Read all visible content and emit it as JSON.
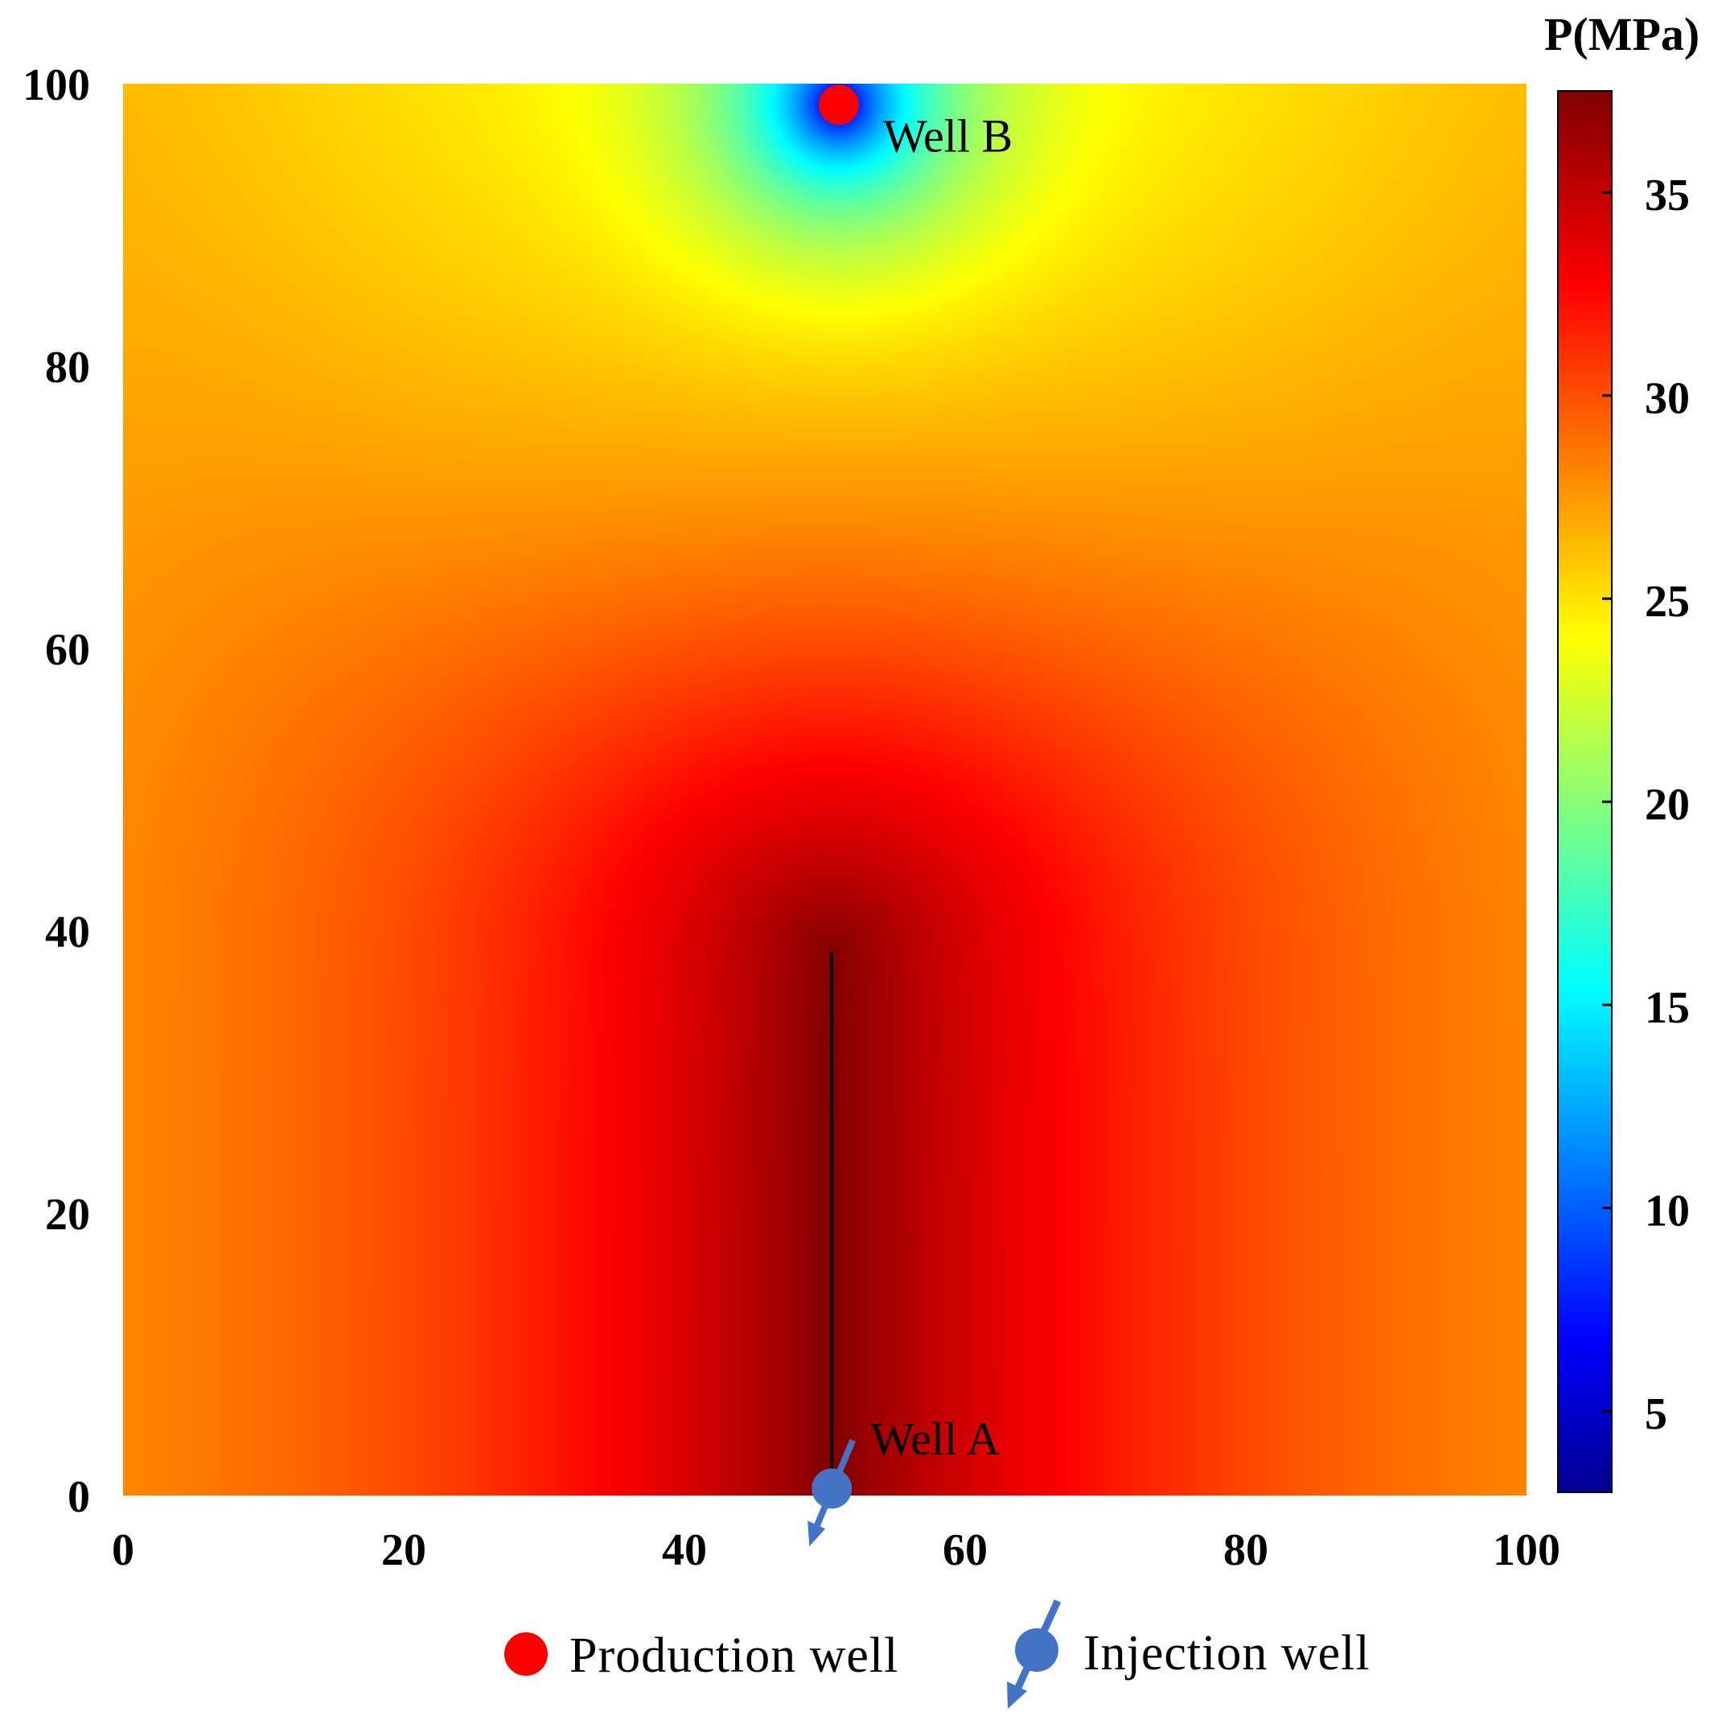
{
  "chart_data": {
    "type": "heatmap",
    "title": "",
    "xlabel": "",
    "ylabel": "",
    "xlim": [
      0,
      100
    ],
    "ylim": [
      0,
      100
    ],
    "x_ticks": [
      0,
      20,
      40,
      60,
      80,
      100
    ],
    "y_ticks": [
      0,
      20,
      40,
      60,
      80,
      100
    ],
    "grid": false,
    "field": {
      "quantity": "pressure",
      "min": 3,
      "max": 37.5,
      "background": 26,
      "injection_boost": 11.5,
      "production_drawdown": 24
    },
    "colorbar": {
      "title": "P(MPa)",
      "range": [
        3,
        37.5
      ],
      "ticks": [
        5,
        10,
        15,
        20,
        25,
        30,
        35
      ],
      "colormap": "jet",
      "colormap_stops": [
        "#00008f",
        "#0000ff",
        "#00ffff",
        "#ffff00",
        "#ff0000",
        "#800000"
      ]
    },
    "fracture": {
      "x": 50.5,
      "y_start": 0,
      "y_end": 38.5,
      "color": "#000000"
    },
    "wells": [
      {
        "name": "Well B",
        "type": "production",
        "x": 51,
        "y": 98.5,
        "color": "#ff0000"
      },
      {
        "name": "Well A",
        "type": "injection",
        "x": 50.5,
        "y": 0.5,
        "color": "#4472c4"
      }
    ],
    "legend": {
      "placement": "bottom",
      "entries": [
        {
          "label": "Production well",
          "marker": "circle",
          "color": "#ff0000"
        },
        {
          "label": "Injection well",
          "marker": "circle-arrow",
          "color": "#4472c4"
        }
      ]
    }
  }
}
